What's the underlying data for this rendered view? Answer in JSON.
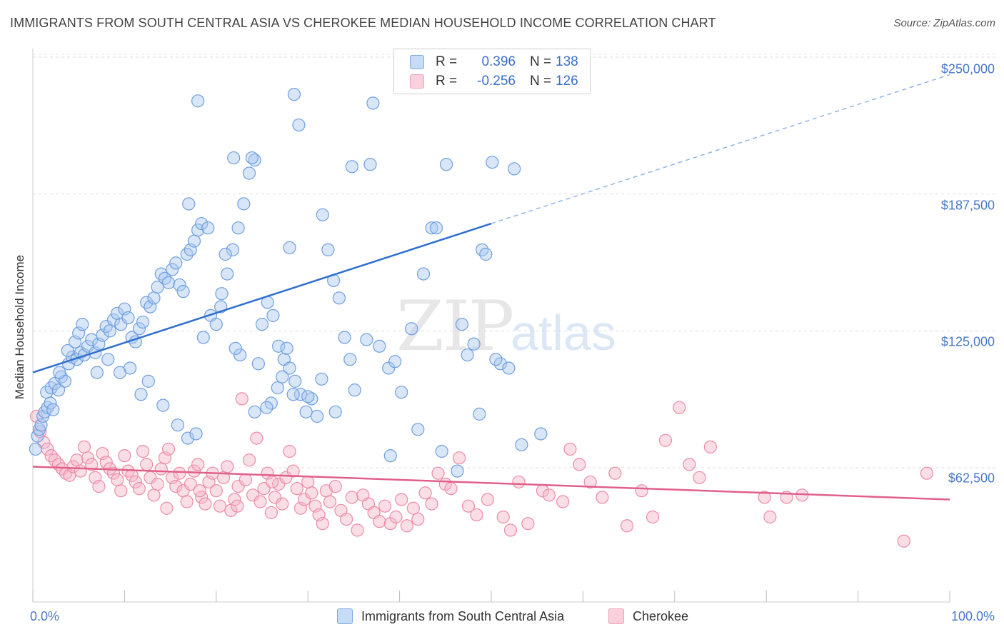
{
  "title": "IMMIGRANTS FROM SOUTH CENTRAL ASIA VS CHEROKEE MEDIAN HOUSEHOLD INCOME CORRELATION CHART",
  "source": "Source: ZipAtlas.com",
  "watermark": {
    "zip": "ZIP",
    "atlas": "atlas"
  },
  "legend": {
    "rows": [
      {
        "r_label": "R =",
        "r_value": "0.396",
        "n_label": "N =",
        "n_value": "138",
        "color": "#a9c8f0"
      },
      {
        "r_label": "R =",
        "r_value": "-0.256",
        "n_label": "N =",
        "n_value": "126",
        "color": "#f5b5c8"
      }
    ]
  },
  "bottom_legend": [
    "Immigrants from South Central Asia",
    "Cherokee"
  ],
  "chart_data": {
    "type": "scatter",
    "title": "IMMIGRANTS FROM SOUTH CENTRAL ASIA VS CHEROKEE MEDIAN HOUSEHOLD INCOME CORRELATION CHART",
    "xlabel": "",
    "ylabel": "Median Household Income",
    "xlim": [
      0,
      100
    ],
    "ylim": [
      5000,
      262000
    ],
    "y_ticks": [
      62500,
      125000,
      187500,
      250000
    ],
    "y_tick_labels": [
      "$62,500",
      "$125,000",
      "$187,500",
      "$250,000"
    ],
    "x_tick_labels": [
      "0.0%",
      "100.0%"
    ],
    "grid": true,
    "series": [
      {
        "name": "Immigrants from South Central Asia",
        "color": "#6f9fe0",
        "fill": "#a9c8f0",
        "r": 0.396,
        "n": 138,
        "trend": {
          "x0": 0,
          "y0": 106000,
          "x1": 50,
          "y1": 174000,
          "dashed_to_x": 100,
          "dashed_to_y": 242000,
          "color": "#2e6fcf"
        },
        "points": [
          [
            0.3,
            71000
          ],
          [
            0.5,
            77000
          ],
          [
            0.7,
            80000
          ],
          [
            0.9,
            82000
          ],
          [
            1.1,
            86000
          ],
          [
            1.3,
            88000
          ],
          [
            1.6,
            90000
          ],
          [
            1.9,
            92000
          ],
          [
            2.2,
            89000
          ],
          [
            1.5,
            97000
          ],
          [
            2.0,
            99000
          ],
          [
            2.4,
            101000
          ],
          [
            2.8,
            98000
          ],
          [
            3.1,
            104000
          ],
          [
            3.5,
            102000
          ],
          [
            2.9,
            106000
          ],
          [
            3.9,
            110000
          ],
          [
            4.3,
            113000
          ],
          [
            4.8,
            112000
          ],
          [
            5.2,
            115000
          ],
          [
            5.6,
            114000
          ],
          [
            6.0,
            118000
          ],
          [
            6.4,
            121000
          ],
          [
            3.8,
            116000
          ],
          [
            4.6,
            120000
          ],
          [
            5.0,
            124000
          ],
          [
            5.4,
            128000
          ],
          [
            6.8,
            115000
          ],
          [
            7.2,
            119000
          ],
          [
            7.6,
            123000
          ],
          [
            8.0,
            127000
          ],
          [
            8.4,
            125000
          ],
          [
            8.8,
            130000
          ],
          [
            9.2,
            133000
          ],
          [
            9.6,
            128000
          ],
          [
            10.0,
            135000
          ],
          [
            10.4,
            131000
          ],
          [
            10.8,
            122000
          ],
          [
            11.2,
            120000
          ],
          [
            11.6,
            126000
          ],
          [
            12.0,
            129000
          ],
          [
            12.4,
            138000
          ],
          [
            12.8,
            136000
          ],
          [
            13.2,
            140000
          ],
          [
            13.6,
            145000
          ],
          [
            14.0,
            151000
          ],
          [
            14.4,
            149000
          ],
          [
            14.8,
            147000
          ],
          [
            15.2,
            153000
          ],
          [
            15.6,
            156000
          ],
          [
            16.0,
            146000
          ],
          [
            16.4,
            143000
          ],
          [
            16.8,
            160000
          ],
          [
            17.2,
            162000
          ],
          [
            17.6,
            166000
          ],
          [
            18.0,
            171000
          ],
          [
            18.4,
            174000
          ],
          [
            7.0,
            106000
          ],
          [
            8.2,
            112000
          ],
          [
            9.5,
            106000
          ],
          [
            10.6,
            108000
          ],
          [
            11.8,
            96000
          ],
          [
            12.6,
            102000
          ],
          [
            14.2,
            91000
          ],
          [
            15.8,
            82000
          ],
          [
            16.9,
            76000
          ],
          [
            17.8,
            78000
          ],
          [
            18.6,
            122000
          ],
          [
            19.4,
            132000
          ],
          [
            20.0,
            128000
          ],
          [
            20.6,
            142000
          ],
          [
            21.2,
            151000
          ],
          [
            21.8,
            162000
          ],
          [
            22.4,
            172000
          ],
          [
            23.0,
            183000
          ],
          [
            23.6,
            197000
          ],
          [
            24.2,
            203000
          ],
          [
            25.0,
            128000
          ],
          [
            25.6,
            138000
          ],
          [
            26.2,
            132000
          ],
          [
            26.8,
            118000
          ],
          [
            27.4,
            112000
          ],
          [
            28.0,
            108000
          ],
          [
            28.6,
            102000
          ],
          [
            29.2,
            96000
          ],
          [
            29.8,
            88000
          ],
          [
            30.4,
            94000
          ],
          [
            31.0,
            86000
          ],
          [
            31.6,
            178000
          ],
          [
            32.2,
            162000
          ],
          [
            32.8,
            148000
          ],
          [
            33.4,
            140000
          ],
          [
            34.0,
            122000
          ],
          [
            34.6,
            112000
          ],
          [
            18.0,
            230000
          ],
          [
            21.9,
            204000
          ],
          [
            23.9,
            204000
          ],
          [
            28.5,
            233000
          ],
          [
            29.0,
            219000
          ],
          [
            28.0,
            163000
          ],
          [
            17.0,
            183000
          ],
          [
            19.1,
            172000
          ],
          [
            21.0,
            160000
          ],
          [
            22.6,
            114000
          ],
          [
            24.6,
            110000
          ],
          [
            26.0,
            92000
          ],
          [
            27.7,
            117000
          ],
          [
            36.4,
            121000
          ],
          [
            37.8,
            118000
          ],
          [
            38.8,
            108000
          ],
          [
            39.5,
            111000
          ],
          [
            40.2,
            97000
          ],
          [
            41.3,
            126000
          ],
          [
            42.6,
            151000
          ],
          [
            43.5,
            172000
          ],
          [
            44.0,
            172000
          ],
          [
            45.1,
            201000
          ],
          [
            46.8,
            128000
          ],
          [
            47.4,
            114000
          ],
          [
            48.1,
            119000
          ],
          [
            49.0,
            162000
          ],
          [
            49.4,
            160000
          ],
          [
            50.1,
            202000
          ],
          [
            51.0,
            110000
          ],
          [
            51.9,
            108000
          ],
          [
            53.3,
            73000
          ],
          [
            55.4,
            78000
          ],
          [
            36.8,
            201000
          ],
          [
            34.8,
            200000
          ],
          [
            37.1,
            229000
          ],
          [
            24.2,
            88000
          ],
          [
            25.5,
            90000
          ],
          [
            26.7,
            99000
          ],
          [
            27.2,
            104000
          ],
          [
            28.4,
            96000
          ],
          [
            33.0,
            88000
          ],
          [
            35.1,
            98000
          ],
          [
            46.3,
            61000
          ],
          [
            39.0,
            68000
          ],
          [
            48.7,
            87000
          ],
          [
            42.0,
            80000
          ],
          [
            44.6,
            70000
          ],
          [
            50.5,
            112000
          ],
          [
            52.5,
            199000
          ],
          [
            30.0,
            95000
          ],
          [
            31.5,
            103000
          ],
          [
            20.5,
            136000
          ],
          [
            22.1,
            117000
          ]
        ]
      },
      {
        "name": "Cherokee",
        "color": "#ee8aa8",
        "fill": "#f5b5c8",
        "r": -0.256,
        "n": 126,
        "trend": {
          "x0": 0,
          "y0": 63000,
          "x1": 100,
          "y1": 48000,
          "color": "#e0608c"
        },
        "points": [
          [
            0.4,
            86000
          ],
          [
            0.8,
            79000
          ],
          [
            1.2,
            74000
          ],
          [
            1.6,
            71000
          ],
          [
            2.0,
            68000
          ],
          [
            2.4,
            66000
          ],
          [
            2.8,
            64000
          ],
          [
            3.2,
            62000
          ],
          [
            3.6,
            60000
          ],
          [
            4.0,
            59000
          ],
          [
            4.4,
            63000
          ],
          [
            4.8,
            66000
          ],
          [
            5.2,
            61000
          ],
          [
            5.6,
            72000
          ],
          [
            6.0,
            67000
          ],
          [
            6.4,
            64000
          ],
          [
            6.8,
            58000
          ],
          [
            7.2,
            54000
          ],
          [
            7.6,
            69000
          ],
          [
            8.0,
            65000
          ],
          [
            8.4,
            62000
          ],
          [
            8.8,
            60000
          ],
          [
            9.2,
            57000
          ],
          [
            9.6,
            52000
          ],
          [
            10.0,
            68000
          ],
          [
            10.4,
            61000
          ],
          [
            10.8,
            59000
          ],
          [
            11.2,
            56000
          ],
          [
            11.6,
            53000
          ],
          [
            12.0,
            70000
          ],
          [
            12.4,
            64000
          ],
          [
            12.8,
            58000
          ],
          [
            13.2,
            50000
          ],
          [
            13.6,
            55000
          ],
          [
            14.0,
            62000
          ],
          [
            14.4,
            67000
          ],
          [
            14.8,
            71000
          ],
          [
            15.2,
            58000
          ],
          [
            15.6,
            54000
          ],
          [
            16.0,
            60000
          ],
          [
            16.4,
            52000
          ],
          [
            16.8,
            47000
          ],
          [
            17.2,
            55000
          ],
          [
            17.6,
            61000
          ],
          [
            18.0,
            64000
          ],
          [
            18.4,
            49000
          ],
          [
            18.8,
            46000
          ],
          [
            19.2,
            56000
          ],
          [
            19.6,
            60000
          ],
          [
            20.0,
            52000
          ],
          [
            20.4,
            45000
          ],
          [
            20.8,
            58000
          ],
          [
            21.2,
            63000
          ],
          [
            21.6,
            43000
          ],
          [
            22.0,
            48000
          ],
          [
            22.4,
            54000
          ],
          [
            22.8,
            94000
          ],
          [
            23.2,
            57000
          ],
          [
            23.6,
            66000
          ],
          [
            24.0,
            50000
          ],
          [
            24.4,
            76000
          ],
          [
            24.8,
            47000
          ],
          [
            25.2,
            53000
          ],
          [
            25.6,
            60000
          ],
          [
            26.0,
            42000
          ],
          [
            26.4,
            49000
          ],
          [
            26.8,
            55000
          ],
          [
            27.2,
            46000
          ],
          [
            27.6,
            58000
          ],
          [
            28.0,
            70000
          ],
          [
            28.4,
            61000
          ],
          [
            28.8,
            53000
          ],
          [
            29.2,
            44000
          ],
          [
            29.6,
            48000
          ],
          [
            30.0,
            56000
          ],
          [
            30.4,
            51000
          ],
          [
            30.8,
            45000
          ],
          [
            31.2,
            41000
          ],
          [
            31.6,
            37000
          ],
          [
            32.0,
            52000
          ],
          [
            32.4,
            47000
          ],
          [
            33.0,
            54000
          ],
          [
            33.6,
            43000
          ],
          [
            34.2,
            39000
          ],
          [
            34.8,
            49000
          ],
          [
            35.4,
            34000
          ],
          [
            36.0,
            50000
          ],
          [
            36.6,
            46000
          ],
          [
            37.2,
            42000
          ],
          [
            37.8,
            38000
          ],
          [
            38.4,
            45000
          ],
          [
            39.0,
            37000
          ],
          [
            39.6,
            40000
          ],
          [
            40.2,
            48000
          ],
          [
            40.8,
            36000
          ],
          [
            41.5,
            44000
          ],
          [
            42.0,
            39000
          ],
          [
            42.8,
            51000
          ],
          [
            43.5,
            46000
          ],
          [
            44.2,
            60000
          ],
          [
            45.0,
            55000
          ],
          [
            45.6,
            53000
          ],
          [
            46.5,
            67000
          ],
          [
            47.5,
            45000
          ],
          [
            48.4,
            41000
          ],
          [
            49.6,
            48000
          ],
          [
            51.3,
            40000
          ],
          [
            52.1,
            34000
          ],
          [
            53.0,
            56000
          ],
          [
            54.0,
            37000
          ],
          [
            55.6,
            52000
          ],
          [
            56.3,
            50000
          ],
          [
            57.8,
            47000
          ],
          [
            58.6,
            71000
          ],
          [
            59.6,
            64000
          ],
          [
            60.8,
            56000
          ],
          [
            62.1,
            49000
          ],
          [
            63.5,
            60000
          ],
          [
            64.8,
            36000
          ],
          [
            66.4,
            52000
          ],
          [
            67.6,
            40000
          ],
          [
            69.0,
            75000
          ],
          [
            70.5,
            90000
          ],
          [
            71.6,
            64000
          ],
          [
            72.7,
            58000
          ],
          [
            73.9,
            72000
          ],
          [
            79.8,
            49000
          ],
          [
            80.4,
            40000
          ],
          [
            82.2,
            49000
          ],
          [
            83.9,
            50000
          ],
          [
            95.0,
            29000
          ],
          [
            97.5,
            60000
          ],
          [
            26.1,
            56000
          ],
          [
            22.3,
            45000
          ],
          [
            18.2,
            52000
          ],
          [
            14.6,
            44000
          ]
        ]
      }
    ]
  }
}
